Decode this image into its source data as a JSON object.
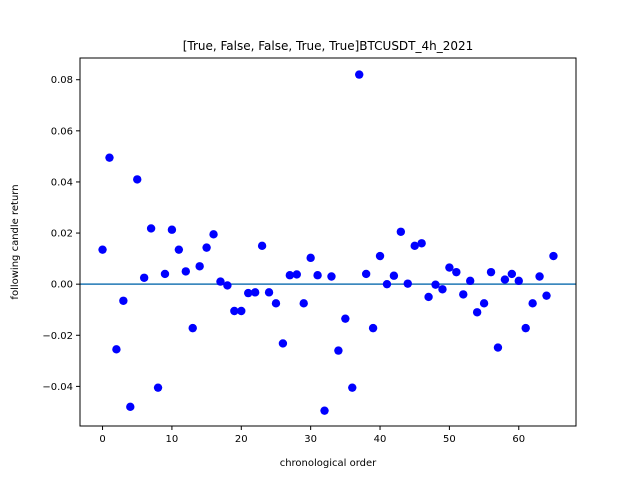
{
  "chart_data": {
    "type": "scatter",
    "title": "[True, False, False, True, True]BTCUSDT_4h_2021",
    "xlabel": "chronological order",
    "ylabel": "following candle return",
    "xlim": [
      -3.25,
      68.25
    ],
    "ylim": [
      -0.0555,
      0.0885
    ],
    "xticks": [
      0,
      10,
      20,
      30,
      40,
      50,
      60
    ],
    "yticks": [
      -0.04,
      -0.02,
      0.0,
      0.02,
      0.04,
      0.06,
      0.08
    ],
    "ytick_labels": [
      "−0.04",
      "−0.02",
      "0.00",
      "0.02",
      "0.04",
      "0.06",
      "0.08"
    ],
    "grid": false,
    "marker_color": "#0000ff",
    "reference_line": {
      "y": 0.0,
      "color": "#1f77b4"
    },
    "x": [
      0,
      1,
      2,
      3,
      4,
      5,
      6,
      7,
      8,
      9,
      10,
      11,
      12,
      13,
      14,
      15,
      16,
      17,
      18,
      19,
      20,
      21,
      22,
      23,
      24,
      25,
      26,
      27,
      28,
      29,
      30,
      31,
      32,
      33,
      34,
      35,
      36,
      37,
      38,
      39,
      40,
      41,
      42,
      43,
      44,
      45,
      46,
      47,
      48,
      49,
      50,
      51,
      52,
      53,
      54,
      55,
      56,
      57,
      58,
      59,
      60,
      61,
      62,
      63,
      64,
      65
    ],
    "y": [
      0.0135,
      0.0495,
      -0.0255,
      -0.0065,
      -0.048,
      0.041,
      0.0025,
      0.0218,
      -0.0405,
      0.004,
      0.0213,
      0.0135,
      0.005,
      -0.0172,
      0.007,
      0.0143,
      0.0195,
      0.001,
      -0.0005,
      -0.0105,
      -0.0105,
      -0.0035,
      -0.0032,
      0.015,
      -0.0032,
      -0.0075,
      -0.0232,
      0.0035,
      0.0038,
      -0.0075,
      0.0103,
      0.0035,
      -0.0495,
      0.003,
      -0.026,
      -0.0135,
      -0.0405,
      0.082,
      0.004,
      -0.0172,
      0.011,
      0.0,
      0.0033,
      0.0205,
      0.0002,
      0.015,
      0.016,
      -0.005,
      -0.0002,
      -0.002,
      0.0065,
      0.0047,
      -0.004,
      0.0013,
      -0.011,
      -0.0075,
      0.0047,
      -0.0248,
      0.0018,
      0.004,
      0.0013,
      -0.0172,
      -0.0075,
      0.003,
      -0.0045,
      0.011
    ]
  }
}
